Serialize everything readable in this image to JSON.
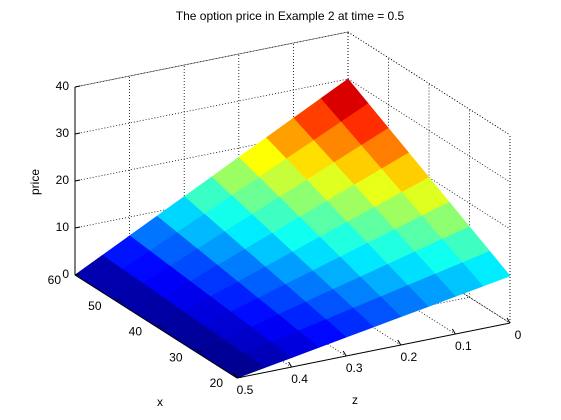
{
  "chart_data": {
    "type": "surface",
    "title": "The option price in Example 2 at time = 0.5",
    "x_label": "x",
    "y_label": "z",
    "z_label": "price",
    "x": [
      20,
      25,
      30,
      35,
      40,
      45,
      50,
      55,
      60
    ],
    "y": [
      0,
      0.05,
      0.1,
      0.15,
      0.2,
      0.25,
      0.3,
      0.35,
      0.4,
      0.45,
      0.5
    ],
    "values": [
      [
        10,
        9,
        8,
        7,
        6,
        5,
        4,
        3,
        2,
        1,
        0
      ],
      [
        12.5,
        11.25,
        10,
        8.75,
        7.5,
        6.25,
        5,
        3.75,
        2.5,
        1.25,
        0
      ],
      [
        15,
        13.5,
        12,
        10.5,
        9,
        7.5,
        6,
        4.5,
        3,
        1.5,
        0
      ],
      [
        17.5,
        15.75,
        14,
        12.25,
        10.5,
        8.75,
        7,
        5.25,
        3.5,
        1.75,
        0
      ],
      [
        20,
        18,
        16,
        14,
        12,
        10,
        8,
        6,
        4,
        2,
        0
      ],
      [
        22.5,
        20.25,
        18,
        15.75,
        13.5,
        11.25,
        9,
        6.75,
        4.5,
        2.25,
        0
      ],
      [
        25,
        22.5,
        20,
        17.5,
        15,
        12.5,
        10,
        7.5,
        5,
        2.5,
        0
      ],
      [
        27.5,
        24.75,
        22,
        19.25,
        16.5,
        13.75,
        11,
        8.25,
        5.5,
        2.75,
        0
      ],
      [
        30,
        27,
        24,
        21,
        18,
        15,
        12,
        9,
        6,
        3,
        0
      ]
    ],
    "xlim": [
      20,
      60
    ],
    "xticks": [
      20,
      30,
      40,
      50,
      60
    ],
    "ylim": [
      0,
      0.5
    ],
    "yticks": [
      0,
      0.1,
      0.2,
      0.3,
      0.4,
      0.5
    ],
    "zlim": [
      0,
      40
    ],
    "zticks": [
      0,
      10,
      20,
      30,
      40
    ],
    "colormap": "jet",
    "grid": true
  }
}
